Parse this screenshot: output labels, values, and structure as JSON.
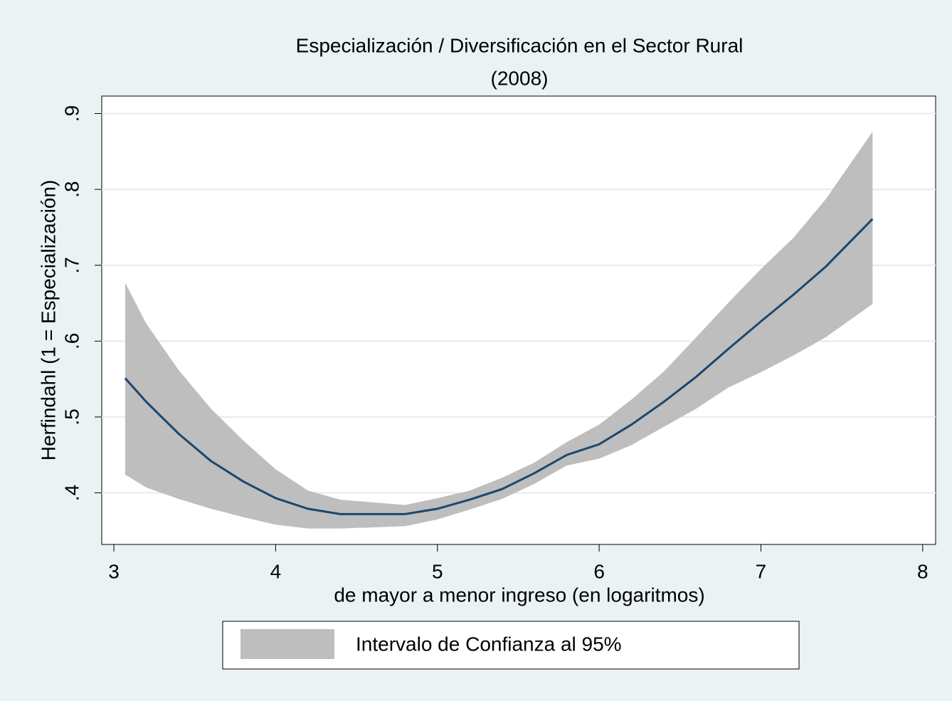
{
  "chart_data": {
    "type": "line",
    "title": [
      "Especialización / Diversificación en el Sector Rural",
      "(2008)"
    ],
    "xlabel": "de mayor a menor ingreso (en logaritmos)",
    "ylabel": "Herfindahl  (1 = Especialización)",
    "x": [
      3.07,
      3.2,
      3.4,
      3.6,
      3.8,
      4.0,
      4.2,
      4.4,
      4.8,
      5.0,
      5.2,
      5.4,
      5.6,
      5.8,
      6.0,
      6.2,
      6.4,
      6.6,
      6.8,
      7.0,
      7.2,
      7.4,
      7.69
    ],
    "series": [
      {
        "color": "#1a476f",
        "values": [
          0.551,
          0.52,
          0.478,
          0.442,
          0.415,
          0.393,
          0.379,
          0.372,
          0.372,
          0.379,
          0.391,
          0.405,
          0.426,
          0.45,
          0.464,
          0.49,
          0.52,
          0.553,
          0.59,
          0.626,
          0.661,
          0.698,
          0.761
        ]
      }
    ],
    "band": {
      "name": "Intervalo de Confianza al 95%",
      "color": "#bebebe",
      "upper": [
        0.677,
        0.623,
        0.562,
        0.511,
        0.469,
        0.431,
        0.403,
        0.391,
        0.384,
        0.393,
        0.403,
        0.42,
        0.44,
        0.467,
        0.49,
        0.523,
        0.56,
        0.605,
        0.651,
        0.695,
        0.736,
        0.787,
        0.876
      ],
      "lower": [
        0.424,
        0.407,
        0.392,
        0.379,
        0.368,
        0.358,
        0.353,
        0.353,
        0.356,
        0.365,
        0.378,
        0.392,
        0.412,
        0.436,
        0.445,
        0.463,
        0.487,
        0.511,
        0.539,
        0.559,
        0.581,
        0.605,
        0.649
      ]
    },
    "xlim": [
      2.925,
      8.08
    ],
    "ylim": [
      0.332,
      0.923
    ],
    "xticks": [
      3,
      4,
      5,
      6,
      7,
      8
    ],
    "yticks": [
      {
        "value": 0.4,
        "label": ".4"
      },
      {
        "value": 0.5,
        "label": ".5"
      },
      {
        "value": 0.6,
        "label": ".6"
      },
      {
        "value": 0.7,
        "label": ".7"
      },
      {
        "value": 0.8,
        "label": ".8"
      },
      {
        "value": 0.9,
        "label": ".9"
      }
    ],
    "grid": true
  }
}
